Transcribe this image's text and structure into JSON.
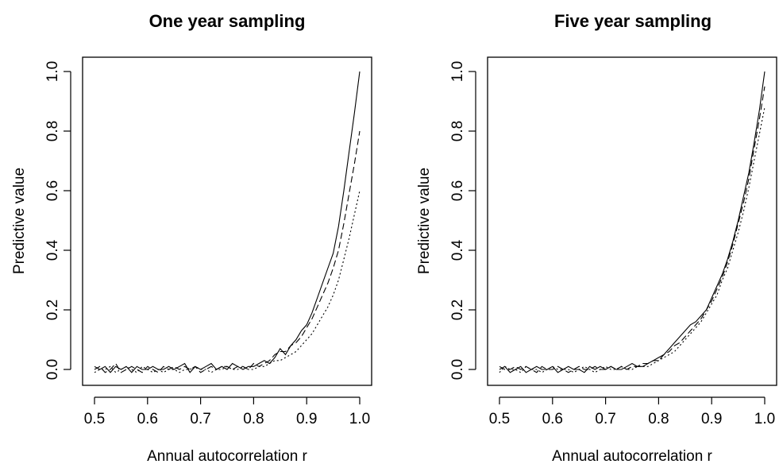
{
  "chart_data": [
    {
      "type": "line",
      "title": "One year sampling",
      "xlabel": "Annual autocorrelation r",
      "ylabel": "Predictive value",
      "xlim": [
        0.5,
        1.0
      ],
      "ylim": [
        0.0,
        1.0
      ],
      "x_ticks": [
        "0.5",
        "0.6",
        "0.7",
        "0.8",
        "0.9",
        "1.0"
      ],
      "y_ticks": [
        "0.0",
        "0.2",
        "0.4",
        "0.6",
        "0.8",
        "1.0"
      ],
      "grid": false,
      "series": [
        {
          "line_style": "solid",
          "x": [
            0.5,
            0.51,
            0.52,
            0.53,
            0.54,
            0.55,
            0.56,
            0.57,
            0.58,
            0.59,
            0.6,
            0.61,
            0.62,
            0.63,
            0.64,
            0.65,
            0.66,
            0.67,
            0.68,
            0.69,
            0.7,
            0.71,
            0.72,
            0.73,
            0.74,
            0.75,
            0.76,
            0.77,
            0.78,
            0.79,
            0.8,
            0.81,
            0.82,
            0.83,
            0.84,
            0.85,
            0.86,
            0.87,
            0.88,
            0.89,
            0.9,
            0.91,
            0.92,
            0.93,
            0.94,
            0.95,
            0.96,
            0.97,
            0.98,
            0.99,
            1.0
          ],
          "values": [
            0.01,
            0.0,
            0.01,
            -0.01,
            0.01,
            0.0,
            0.01,
            -0.01,
            0.01,
            0.0,
            0.0,
            0.01,
            0.0,
            0.0,
            0.01,
            0.0,
            0.01,
            0.02,
            -0.01,
            0.01,
            0.0,
            0.01,
            0.02,
            0.0,
            0.01,
            0.0,
            0.02,
            0.01,
            0.0,
            0.01,
            0.01,
            0.02,
            0.03,
            0.02,
            0.04,
            0.07,
            0.05,
            0.08,
            0.1,
            0.13,
            0.15,
            0.19,
            0.24,
            0.29,
            0.34,
            0.39,
            0.48,
            0.6,
            0.73,
            0.86,
            1.0
          ]
        },
        {
          "line_style": "dashed",
          "x": [
            0.5,
            0.51,
            0.52,
            0.53,
            0.54,
            0.55,
            0.56,
            0.57,
            0.58,
            0.59,
            0.6,
            0.61,
            0.62,
            0.63,
            0.64,
            0.65,
            0.66,
            0.67,
            0.68,
            0.69,
            0.7,
            0.71,
            0.72,
            0.73,
            0.74,
            0.75,
            0.76,
            0.77,
            0.78,
            0.79,
            0.8,
            0.81,
            0.82,
            0.83,
            0.84,
            0.85,
            0.86,
            0.87,
            0.88,
            0.89,
            0.9,
            0.91,
            0.92,
            0.93,
            0.94,
            0.95,
            0.96,
            0.97,
            0.98,
            0.99,
            1.0
          ],
          "values": [
            0.0,
            0.01,
            -0.01,
            0.0,
            0.02,
            -0.01,
            0.0,
            0.01,
            0.0,
            -0.01,
            0.01,
            0.0,
            -0.01,
            0.01,
            0.0,
            0.01,
            0.0,
            0.01,
            0.0,
            0.01,
            -0.01,
            0.0,
            0.01,
            0.0,
            0.01,
            0.01,
            0.0,
            0.01,
            0.01,
            0.0,
            0.02,
            0.01,
            0.02,
            0.03,
            0.05,
            0.06,
            0.06,
            0.08,
            0.09,
            0.11,
            0.14,
            0.17,
            0.21,
            0.25,
            0.29,
            0.34,
            0.4,
            0.49,
            0.59,
            0.69,
            0.8
          ]
        },
        {
          "line_style": "dotted",
          "x": [
            0.5,
            0.51,
            0.52,
            0.53,
            0.54,
            0.55,
            0.56,
            0.57,
            0.58,
            0.59,
            0.6,
            0.61,
            0.62,
            0.63,
            0.64,
            0.65,
            0.66,
            0.67,
            0.68,
            0.69,
            0.7,
            0.71,
            0.72,
            0.73,
            0.74,
            0.75,
            0.76,
            0.77,
            0.78,
            0.79,
            0.8,
            0.81,
            0.82,
            0.83,
            0.84,
            0.85,
            0.86,
            0.87,
            0.88,
            0.89,
            0.9,
            0.91,
            0.92,
            0.93,
            0.94,
            0.95,
            0.96,
            0.97,
            0.98,
            0.99,
            1.0
          ],
          "values": [
            -0.01,
            0.0,
            0.0,
            0.01,
            -0.01,
            0.0,
            0.01,
            0.0,
            -0.01,
            0.01,
            0.0,
            -0.01,
            0.0,
            -0.01,
            0.0,
            0.0,
            -0.01,
            0.0,
            0.0,
            0.01,
            0.0,
            0.0,
            -0.01,
            0.0,
            0.0,
            0.01,
            0.0,
            0.0,
            0.01,
            0.0,
            0.0,
            0.01,
            0.01,
            0.02,
            0.03,
            0.03,
            0.04,
            0.05,
            0.06,
            0.08,
            0.1,
            0.12,
            0.15,
            0.18,
            0.21,
            0.25,
            0.3,
            0.37,
            0.44,
            0.52,
            0.6
          ]
        }
      ]
    },
    {
      "type": "line",
      "title": "Five year sampling",
      "xlabel": "Annual autocorrelation r",
      "ylabel": "Predictive value",
      "xlim": [
        0.5,
        1.0
      ],
      "ylim": [
        0.0,
        1.0
      ],
      "x_ticks": [
        "0.5",
        "0.6",
        "0.7",
        "0.8",
        "0.9",
        "1.0"
      ],
      "y_ticks": [
        "0.0",
        "0.2",
        "0.4",
        "0.6",
        "0.8",
        "1.0"
      ],
      "grid": false,
      "series": [
        {
          "line_style": "solid",
          "x": [
            0.5,
            0.51,
            0.52,
            0.53,
            0.54,
            0.55,
            0.56,
            0.57,
            0.58,
            0.59,
            0.6,
            0.61,
            0.62,
            0.63,
            0.64,
            0.65,
            0.66,
            0.67,
            0.68,
            0.69,
            0.7,
            0.71,
            0.72,
            0.73,
            0.74,
            0.75,
            0.76,
            0.77,
            0.78,
            0.79,
            0.8,
            0.81,
            0.82,
            0.83,
            0.84,
            0.85,
            0.86,
            0.87,
            0.88,
            0.89,
            0.9,
            0.91,
            0.92,
            0.93,
            0.94,
            0.95,
            0.96,
            0.97,
            0.98,
            0.99,
            1.0
          ],
          "values": [
            0.0,
            0.01,
            -0.01,
            0.0,
            0.01,
            -0.01,
            0.0,
            0.01,
            0.0,
            0.0,
            0.01,
            -0.01,
            0.0,
            0.01,
            0.0,
            0.0,
            -0.01,
            0.01,
            0.0,
            0.01,
            0.0,
            0.01,
            0.0,
            0.0,
            0.01,
            0.02,
            0.01,
            0.01,
            0.02,
            0.03,
            0.04,
            0.05,
            0.07,
            0.09,
            0.11,
            0.13,
            0.15,
            0.16,
            0.18,
            0.2,
            0.24,
            0.28,
            0.32,
            0.37,
            0.43,
            0.5,
            0.58,
            0.66,
            0.76,
            0.87,
            1.0
          ]
        },
        {
          "line_style": "dashed",
          "x": [
            0.5,
            0.51,
            0.52,
            0.53,
            0.54,
            0.55,
            0.56,
            0.57,
            0.58,
            0.59,
            0.6,
            0.61,
            0.62,
            0.63,
            0.64,
            0.65,
            0.66,
            0.67,
            0.68,
            0.69,
            0.7,
            0.71,
            0.72,
            0.73,
            0.74,
            0.75,
            0.76,
            0.77,
            0.78,
            0.79,
            0.8,
            0.81,
            0.82,
            0.83,
            0.84,
            0.85,
            0.86,
            0.87,
            0.88,
            0.89,
            0.9,
            0.91,
            0.92,
            0.93,
            0.94,
            0.95,
            0.96,
            0.97,
            0.98,
            0.99,
            1.0
          ],
          "values": [
            0.01,
            0.0,
            0.0,
            0.01,
            0.0,
            0.01,
            0.0,
            -0.01,
            0.01,
            0.0,
            0.0,
            0.01,
            0.0,
            -0.01,
            0.0,
            0.01,
            0.0,
            0.0,
            0.01,
            0.0,
            0.0,
            0.01,
            0.0,
            0.01,
            0.0,
            0.01,
            0.01,
            0.02,
            0.02,
            0.03,
            0.03,
            0.05,
            0.06,
            0.08,
            0.09,
            0.11,
            0.13,
            0.15,
            0.17,
            0.2,
            0.23,
            0.27,
            0.31,
            0.36,
            0.42,
            0.49,
            0.56,
            0.64,
            0.74,
            0.84,
            0.95
          ]
        },
        {
          "line_style": "dotted",
          "x": [
            0.5,
            0.51,
            0.52,
            0.53,
            0.54,
            0.55,
            0.56,
            0.57,
            0.58,
            0.59,
            0.6,
            0.61,
            0.62,
            0.63,
            0.64,
            0.65,
            0.66,
            0.67,
            0.68,
            0.69,
            0.7,
            0.71,
            0.72,
            0.73,
            0.74,
            0.75,
            0.76,
            0.77,
            0.78,
            0.79,
            0.8,
            0.81,
            0.82,
            0.83,
            0.84,
            0.85,
            0.86,
            0.87,
            0.88,
            0.89,
            0.9,
            0.91,
            0.92,
            0.93,
            0.94,
            0.95,
            0.96,
            0.97,
            0.98,
            0.99,
            1.0
          ],
          "values": [
            -0.01,
            0.01,
            0.0,
            0.0,
            -0.01,
            0.01,
            0.0,
            0.0,
            -0.01,
            0.0,
            0.01,
            0.0,
            0.0,
            0.0,
            -0.01,
            0.0,
            0.01,
            0.0,
            -0.01,
            0.0,
            0.01,
            0.0,
            0.0,
            0.01,
            0.0,
            0.0,
            0.01,
            0.01,
            0.01,
            0.02,
            0.03,
            0.04,
            0.05,
            0.06,
            0.08,
            0.1,
            0.12,
            0.14,
            0.16,
            0.19,
            0.22,
            0.25,
            0.3,
            0.34,
            0.4,
            0.46,
            0.53,
            0.61,
            0.7,
            0.79,
            0.88
          ]
        }
      ]
    }
  ]
}
